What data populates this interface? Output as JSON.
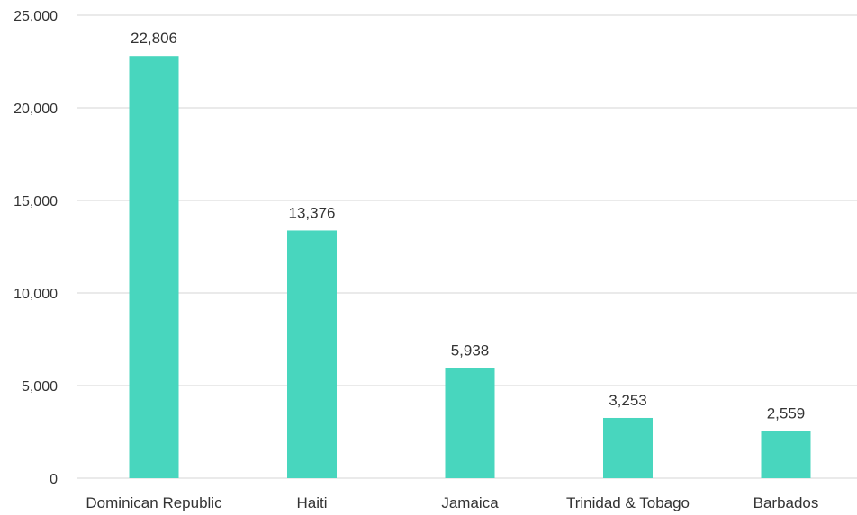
{
  "chart_data": {
    "type": "bar",
    "categories": [
      "Dominican Republic",
      "Haiti",
      "Jamaica",
      "Trinidad & Tobago",
      "Barbados"
    ],
    "values": [
      22806,
      13376,
      5938,
      3253,
      2559
    ],
    "value_labels": [
      "22,806",
      "13,376",
      "5,938",
      "3,253",
      "2,559"
    ],
    "ylim": [
      0,
      25000
    ],
    "yticks": [
      0,
      5000,
      10000,
      15000,
      20000,
      25000
    ],
    "ytick_labels": [
      "0",
      "5,000",
      "10,000",
      "15,000",
      "20,000",
      "25,000"
    ],
    "grid": true,
    "legend": "none",
    "bar_color": "#48d6be",
    "title": "",
    "xlabel": "",
    "ylabel": ""
  }
}
